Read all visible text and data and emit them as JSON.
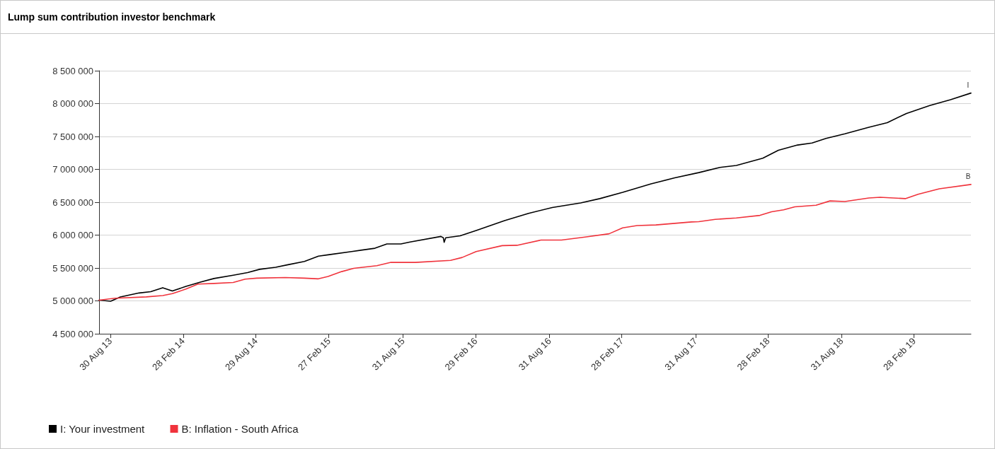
{
  "chart_data": {
    "type": "line",
    "title": "Lump sum contribution investor benchmark",
    "x": [
      "2013-08-02",
      "2013-08-31",
      "2013-09-24",
      "2013-11-10",
      "2013-12-09",
      "2014-01-08",
      "2014-02-01",
      "2014-03-07",
      "2014-04-12",
      "2014-05-16",
      "2014-07-03",
      "2014-08-08",
      "2014-09-07",
      "2014-10-17",
      "2014-11-17",
      "2014-12-28",
      "2015-02-01",
      "2015-02-25",
      "2015-04-25",
      "2015-06-22",
      "2015-07-22",
      "2015-08-26",
      "2015-09-18",
      "2015-12-04",
      "2015-12-10",
      "2015-12-12",
      "2015-12-16",
      "2016-01-21",
      "2016-03-01",
      "2016-05-11",
      "2016-07-10",
      "2016-09-07",
      "2016-11-17",
      "2017-01-04",
      "2017-03-02",
      "2017-05-12",
      "2017-07-10",
      "2017-09-08",
      "2017-10-31",
      "2017-12-11",
      "2018-02-15",
      "2018-03-26",
      "2018-05-13",
      "2018-06-18",
      "2018-07-23",
      "2018-09-08",
      "2018-11-07",
      "2018-12-23",
      "2019-02-09",
      "2019-04-08",
      "2019-05-30",
      "2019-07-20"
    ],
    "series": [
      {
        "name": "I: Your investment",
        "color": "#000000",
        "values": [
          5010000,
          4995000,
          5060000,
          5120000,
          5140000,
          5200000,
          5150000,
          5220000,
          5285000,
          5340000,
          5390000,
          5430000,
          5480000,
          5510000,
          5550000,
          5600000,
          5680000,
          5700000,
          5750000,
          5800000,
          5865000,
          5865000,
          5895000,
          5980000,
          5960000,
          5890000,
          5960000,
          5990000,
          6070000,
          6220000,
          6330000,
          6420000,
          6490000,
          6555000,
          6650000,
          6780000,
          6870000,
          6950000,
          7030000,
          7060000,
          7170000,
          7290000,
          7370000,
          7400000,
          7470000,
          7540000,
          7640000,
          7710000,
          7850000,
          7970000,
          8060000,
          8160000
        ]
      },
      {
        "name": "B: Inflation - South Africa",
        "color": "#f0333c",
        "x": [
          "2013-08-02",
          "2013-09-11",
          "2013-11-28",
          "2014-01-08",
          "2014-02-01",
          "2014-03-07",
          "2014-04-06",
          "2014-05-16",
          "2014-07-03",
          "2014-08-02",
          "2014-08-31",
          "2014-11-10",
          "2014-12-28",
          "2015-02-01",
          "2015-02-25",
          "2015-03-31",
          "2015-04-30",
          "2015-06-27",
          "2015-08-01",
          "2015-10-01",
          "2015-12-28",
          "2016-01-26",
          "2016-03-01",
          "2016-05-05",
          "2016-06-11",
          "2016-08-10",
          "2016-09-30",
          "2016-11-28",
          "2017-01-27",
          "2017-03-02",
          "2017-04-07",
          "2017-05-24",
          "2017-08-21",
          "2017-09-08",
          "2017-10-19",
          "2017-12-11",
          "2018-02-08",
          "2018-03-09",
          "2018-04-08",
          "2018-05-06",
          "2018-06-28",
          "2018-08-02",
          "2018-09-08",
          "2018-11-07",
          "2018-12-05",
          "2019-02-06",
          "2019-03-10",
          "2019-05-02",
          "2019-07-20"
        ],
        "values": [
          5010000,
          5040000,
          5060000,
          5080000,
          5110000,
          5180000,
          5255000,
          5265000,
          5280000,
          5330000,
          5345000,
          5355000,
          5345000,
          5335000,
          5370000,
          5445000,
          5495000,
          5535000,
          5585000,
          5585000,
          5615000,
          5660000,
          5750000,
          5840000,
          5845000,
          5925000,
          5925000,
          5970000,
          6020000,
          6110000,
          6145000,
          6155000,
          6200000,
          6205000,
          6240000,
          6260000,
          6300000,
          6355000,
          6385000,
          6430000,
          6455000,
          6520000,
          6510000,
          6565000,
          6575000,
          6555000,
          6620000,
          6705000,
          6770000
        ]
      }
    ],
    "xlim": [
      "2013-08-02",
      "2019-07-20"
    ],
    "xticks": [
      {
        "value": "2013-08-30",
        "label": "30 Aug 13"
      },
      {
        "value": "2014-02-28",
        "label": "28 Feb 14"
      },
      {
        "value": "2014-08-29",
        "label": "29 Aug 14"
      },
      {
        "value": "2015-02-27",
        "label": "27 Feb 15"
      },
      {
        "value": "2015-08-31",
        "label": "31 Aug 15"
      },
      {
        "value": "2016-02-29",
        "label": "29 Feb 16"
      },
      {
        "value": "2016-08-31",
        "label": "31 Aug 16"
      },
      {
        "value": "2017-02-28",
        "label": "28 Feb 17"
      },
      {
        "value": "2017-08-31",
        "label": "31 Aug 17"
      },
      {
        "value": "2018-02-28",
        "label": "28 Feb 18"
      },
      {
        "value": "2018-08-31",
        "label": "31 Aug 18"
      },
      {
        "value": "2019-02-28",
        "label": "28 Feb 19"
      }
    ],
    "ylim": [
      4500000,
      8500000
    ],
    "yticks": [
      {
        "value": 4500000,
        "label": "4 500 000"
      },
      {
        "value": 5000000,
        "label": "5 000 000"
      },
      {
        "value": 5500000,
        "label": "5 500 000"
      },
      {
        "value": 6000000,
        "label": "6 000 000"
      },
      {
        "value": 6500000,
        "label": "6 500 000"
      },
      {
        "value": 7000000,
        "label": "7 000 000"
      },
      {
        "value": 7500000,
        "label": "7 500 000"
      },
      {
        "value": 8000000,
        "label": "8 000 000"
      },
      {
        "value": 8500000,
        "label": "8 500 000"
      }
    ],
    "annotations": [
      {
        "text": "I",
        "x": "2019-07-20",
        "y": 8160000
      },
      {
        "text": "B",
        "x": "2019-07-20",
        "y": 6770000
      }
    ],
    "grid": "y",
    "legend": "bottom left",
    "marker": "none",
    "line_style": "solid"
  }
}
